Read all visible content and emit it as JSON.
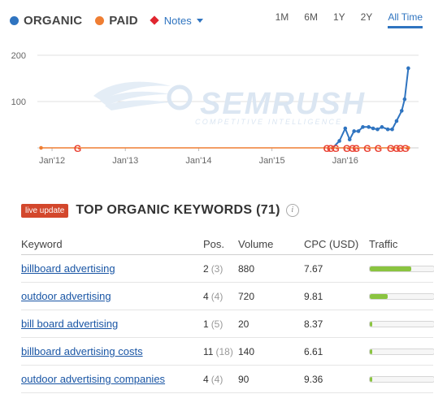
{
  "legend": {
    "organic": {
      "label": "ORGANIC",
      "color": "#2f74c0"
    },
    "paid": {
      "label": "PAID",
      "color": "#ef7e33"
    },
    "notes": {
      "label": "Notes",
      "color": "#e0262f"
    }
  },
  "ranges": [
    "1M",
    "6M",
    "1Y",
    "2Y",
    "All Time"
  ],
  "active_range": "All Time",
  "chart_data": {
    "type": "line",
    "y_ticks": [
      "200",
      "100"
    ],
    "x_ticks": [
      "Jan'12",
      "Jan'13",
      "Jan'14",
      "Jan'15",
      "Jan'16"
    ],
    "ylim": [
      0,
      200
    ],
    "xlim": [
      2011.8,
      2017.0
    ],
    "grid": true,
    "series": [
      {
        "name": "ORGANIC",
        "color": "#2f74c0",
        "x": [
          2015.83,
          2015.92,
          2016.0,
          2016.06,
          2016.12,
          2016.18,
          2016.24,
          2016.32,
          2016.38,
          2016.44,
          2016.5,
          2016.58,
          2016.64,
          2016.7,
          2016.77,
          2016.81,
          2016.86
        ],
        "y": [
          0,
          15,
          42,
          18,
          36,
          36,
          45,
          45,
          42,
          40,
          45,
          40,
          40,
          58,
          80,
          105,
          172
        ]
      },
      {
        "name": "PAID",
        "color": "#ef7e33",
        "x": [
          2011.85,
          2015.83,
          2016.86
        ],
        "y": [
          0,
          0,
          0
        ]
      }
    ],
    "notes": [
      2012.35,
      2015.75,
      2015.8,
      2015.87,
      2016.02,
      2016.1,
      2016.15,
      2016.3,
      2016.45,
      2016.62,
      2016.7,
      2016.75,
      2016.82
    ]
  },
  "watermark": {
    "main": "SEMRUSH",
    "sub": "COMPETITIVE INTELLIGENCE"
  },
  "keywords": {
    "badge": "live update",
    "title": "TOP ORGANIC KEYWORDS (71)",
    "info_icon": "i",
    "columns": {
      "keyword": "Keyword",
      "pos": "Pos.",
      "volume": "Volume",
      "cpc": "CPC (USD)",
      "traffic": "Traffic"
    },
    "rows": [
      {
        "keyword": "billboard advertising",
        "pos": "2",
        "prev": "(3)",
        "volume": "880",
        "cpc": "7.67",
        "traffic": 0.64
      },
      {
        "keyword": "outdoor advertising",
        "pos": "4",
        "prev": "(4)",
        "volume": "720",
        "cpc": "9.81",
        "traffic": 0.28
      },
      {
        "keyword": "bill board advertising",
        "pos": "1",
        "prev": "(5)",
        "volume": "20",
        "cpc": "8.37",
        "traffic": 0.04
      },
      {
        "keyword": "billboard advertising costs",
        "pos": "11",
        "prev": "(18)",
        "volume": "140",
        "cpc": "6.61",
        "traffic": 0.04
      },
      {
        "keyword": "outdoor advertising companies",
        "pos": "4",
        "prev": "(4)",
        "volume": "90",
        "cpc": "9.36",
        "traffic": 0.04
      }
    ]
  }
}
